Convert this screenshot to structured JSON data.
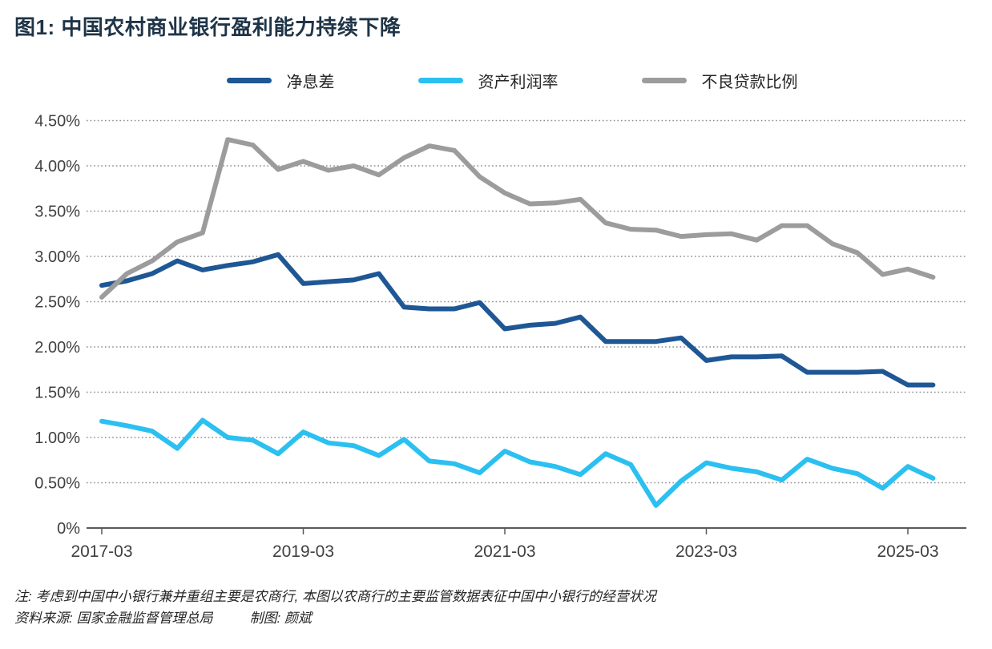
{
  "title": "图1: 中国农村商业银行盈利能力持续下降",
  "legend": {
    "items": [
      {
        "label": "净息差",
        "color": "#1f5795"
      },
      {
        "label": "资产利润率",
        "color": "#2bc0f0"
      },
      {
        "label": "不良贷款比例",
        "color": "#9c9c9c"
      }
    ]
  },
  "notes": {
    "line1": "注: 考虑到中国中小银行兼并重组主要是农商行, 本图以农商行的主要监管数据表征中国中小银行的经营状况",
    "source_label": "资料来源: 国家金融监督管理总局",
    "credit_label": "制图: 颜斌"
  },
  "colors": {
    "title": "#1f3447",
    "axis": "#595959",
    "grid": "#8c8c8c",
    "tick_label": "#404040",
    "note": "#262626"
  },
  "chart_data": {
    "type": "line",
    "title": "图1: 中国农村商业银行盈利能力持续下降",
    "xlabel": "",
    "ylabel": "",
    "ylim": [
      0,
      4.5
    ],
    "grid": "horizontal-dotted",
    "legend_position": "top",
    "categories": [
      "2017-03",
      "2017-06",
      "2017-09",
      "2017-12",
      "2018-03",
      "2018-06",
      "2018-09",
      "2018-12",
      "2019-03",
      "2019-06",
      "2019-09",
      "2019-12",
      "2020-03",
      "2020-06",
      "2020-09",
      "2020-12",
      "2021-03",
      "2021-06",
      "2021-09",
      "2021-12",
      "2022-03",
      "2022-06",
      "2022-09",
      "2022-12",
      "2023-03",
      "2023-06",
      "2023-09",
      "2023-12",
      "2024-03",
      "2024-06",
      "2024-09",
      "2024-12",
      "2025-03",
      "2025-06"
    ],
    "series": [
      {
        "name": "净息差",
        "color": "#1f5795",
        "values": [
          2.68,
          2.73,
          2.81,
          2.95,
          2.85,
          2.9,
          2.94,
          3.02,
          2.7,
          2.72,
          2.74,
          2.81,
          2.44,
          2.42,
          2.42,
          2.49,
          2.2,
          2.24,
          2.26,
          2.33,
          2.06,
          2.06,
          2.06,
          2.1,
          1.85,
          1.89,
          1.89,
          1.9,
          1.72,
          1.72,
          1.72,
          1.73,
          1.58,
          1.58
        ]
      },
      {
        "name": "资产利润率",
        "color": "#2bc0f0",
        "values": [
          1.18,
          1.13,
          1.07,
          0.88,
          1.19,
          1.0,
          0.97,
          0.82,
          1.06,
          0.94,
          0.91,
          0.8,
          0.98,
          0.74,
          0.71,
          0.61,
          0.85,
          0.73,
          0.68,
          0.59,
          0.82,
          0.7,
          0.25,
          0.52,
          0.72,
          0.66,
          0.62,
          0.53,
          0.76,
          0.66,
          0.6,
          0.44,
          0.68,
          0.55
        ]
      },
      {
        "name": "不良贷款比例",
        "color": "#9c9c9c",
        "values": [
          2.55,
          2.81,
          2.95,
          3.16,
          3.26,
          4.29,
          4.23,
          3.96,
          4.05,
          3.95,
          4.0,
          3.9,
          4.09,
          4.22,
          4.17,
          3.88,
          3.7,
          3.58,
          3.59,
          3.63,
          3.37,
          3.3,
          3.29,
          3.22,
          3.24,
          3.25,
          3.18,
          3.34,
          3.34,
          3.14,
          3.04,
          2.8,
          2.86,
          2.77
        ]
      }
    ],
    "y_ticks": [
      {
        "label": "4.50%",
        "value": 4.5
      },
      {
        "label": "4.00%",
        "value": 4.0
      },
      {
        "label": "3.50%",
        "value": 3.5
      },
      {
        "label": "3.00%",
        "value": 3.0
      },
      {
        "label": "2.50%",
        "value": 2.5
      },
      {
        "label": "2.00%",
        "value": 2.0
      },
      {
        "label": "1.50%",
        "value": 1.5
      },
      {
        "label": "1.00%",
        "value": 1.0
      },
      {
        "label": "0.50%",
        "value": 0.5
      },
      {
        "label": "0%",
        "value": 0.0
      }
    ],
    "x_ticks": [
      {
        "label": "2017-03",
        "index": 0
      },
      {
        "label": "2019-03",
        "index": 8
      },
      {
        "label": "2021-03",
        "index": 16
      },
      {
        "label": "2023-03",
        "index": 24
      },
      {
        "label": "2025-03",
        "index": 32
      }
    ]
  }
}
